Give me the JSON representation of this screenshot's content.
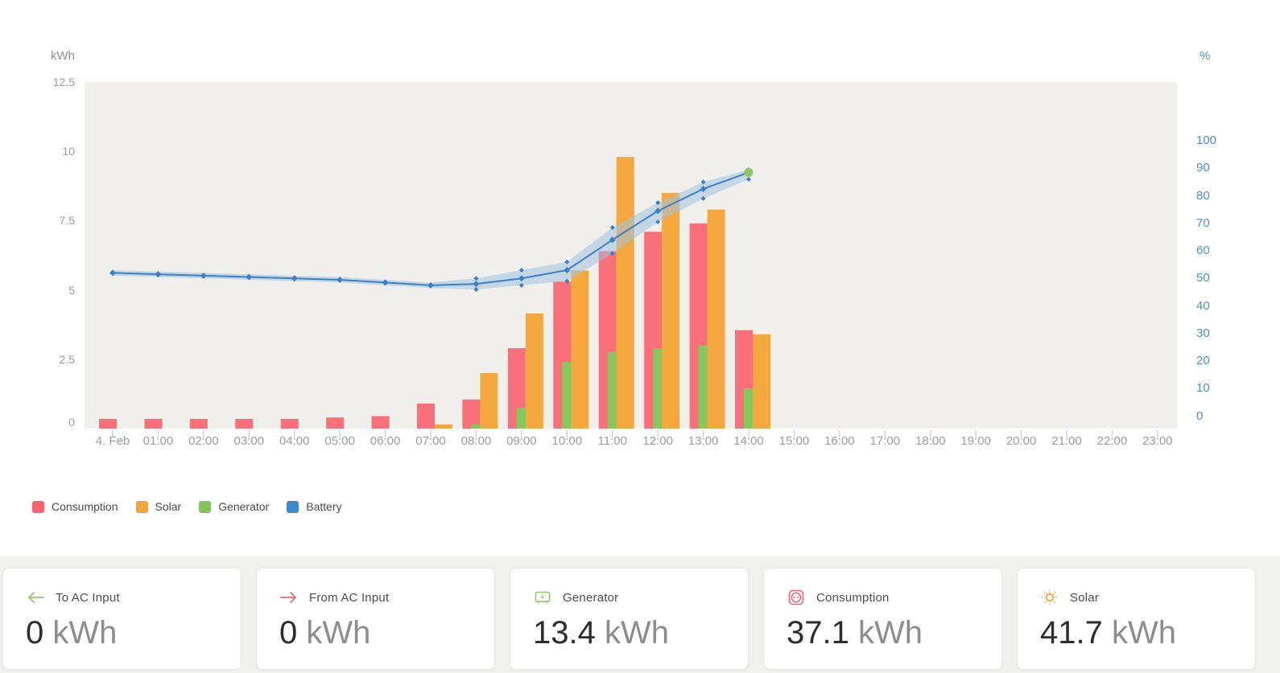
{
  "chart": {
    "left_axis_unit": "kWh",
    "right_axis_unit": "%",
    "left_ticks": [
      "12.5",
      "10",
      "7.5",
      "5",
      "2.5",
      "0"
    ],
    "right_ticks": [
      "100",
      "90",
      "80",
      "70",
      "60",
      "50",
      "40",
      "30",
      "20",
      "10",
      "0"
    ],
    "x_labels": [
      "4. Feb",
      "01:00",
      "02:00",
      "03:00",
      "04:00",
      "05:00",
      "06:00",
      "07:00",
      "08:00",
      "09:00",
      "10:00",
      "11:00",
      "12:00",
      "13:00",
      "14:00",
      "15:00",
      "16:00",
      "17:00",
      "18:00",
      "19:00",
      "20:00",
      "21:00",
      "22:00",
      "23:00"
    ],
    "legend": [
      {
        "label": "Consumption",
        "color": "#f4636f"
      },
      {
        "label": "Solar",
        "color": "#f2a73b"
      },
      {
        "label": "Generator",
        "color": "#82c35b"
      },
      {
        "label": "Battery",
        "color": "#4089cb"
      }
    ]
  },
  "chart_data": {
    "type": "bar+line",
    "title": "",
    "xlabel": "",
    "ylabel_left": "kWh",
    "ylabel_right": "%",
    "ylim_left": [
      0,
      12.5
    ],
    "ylim_right": [
      0,
      100
    ],
    "grid": false,
    "legend_position": "bottom-left",
    "categories": [
      "4. Feb",
      "01:00",
      "02:00",
      "03:00",
      "04:00",
      "05:00",
      "06:00",
      "07:00",
      "08:00",
      "09:00",
      "10:00",
      "11:00",
      "12:00",
      "13:00",
      "14:00",
      "15:00",
      "16:00",
      "17:00",
      "18:00",
      "19:00",
      "20:00",
      "21:00",
      "22:00",
      "23:00"
    ],
    "series": [
      {
        "name": "Consumption",
        "type": "bar",
        "axis": "left",
        "unit": "kWh",
        "color": "#f9707a",
        "values": [
          0.35,
          0.35,
          0.35,
          0.35,
          0.35,
          0.4,
          0.45,
          0.9,
          1.05,
          2.9,
          5.3,
          6.4,
          7.1,
          7.4,
          3.55,
          0,
          0,
          0,
          0,
          0,
          0,
          0,
          0,
          0
        ]
      },
      {
        "name": "Generator",
        "type": "bar",
        "axis": "left",
        "unit": "kWh",
        "color": "#87c85e",
        "values": [
          0,
          0,
          0,
          0,
          0,
          0,
          0,
          0,
          0.15,
          0.75,
          2.4,
          2.75,
          2.9,
          3,
          1.45,
          0,
          0,
          0,
          0,
          0,
          0,
          0,
          0,
          0
        ]
      },
      {
        "name": "Solar",
        "type": "bar",
        "axis": "left",
        "unit": "kWh",
        "color": "#f5a83d",
        "values": [
          0,
          0,
          0,
          0,
          0,
          0,
          0,
          0.15,
          2,
          4.15,
          5.7,
          9.8,
          8.5,
          7.9,
          3.4,
          0,
          0,
          0,
          0,
          0,
          0,
          0,
          0,
          0
        ]
      },
      {
        "name": "Battery",
        "type": "line",
        "axis": "right",
        "unit": "%",
        "color": "#3e7fc4",
        "band_color": "#9fc2e2",
        "values": [
          52,
          51.5,
          51,
          50.5,
          50,
          49.5,
          48.5,
          47.5,
          48,
          50,
          53,
          64,
          74.5,
          82.5,
          88.5
        ],
        "band_min": [
          51,
          50.5,
          50,
          49.5,
          49,
          48.5,
          47.5,
          46.5,
          46,
          47.5,
          49,
          59,
          70.5,
          79,
          86
        ],
        "band_max": [
          53,
          52.5,
          52,
          51.5,
          51,
          50.5,
          49.5,
          48.5,
          50,
          53,
          56,
          68.5,
          77.5,
          85,
          89.5
        ],
        "last_point_color": "#8dc863"
      }
    ]
  },
  "cards": [
    {
      "icon": "arrow-left-icon",
      "icon_color": "#8fc966",
      "label": "To AC Input",
      "value": "0",
      "unit": "kWh"
    },
    {
      "icon": "arrow-right-icon",
      "icon_color": "#f4636f",
      "label": "From AC Input",
      "value": "0",
      "unit": "kWh"
    },
    {
      "icon": "generator-icon",
      "icon_color": "#8fc966",
      "label": "Generator",
      "value": "13.4",
      "unit": "kWh"
    },
    {
      "icon": "socket-icon",
      "icon_color": "#f4636f",
      "label": "Consumption",
      "value": "37.1",
      "unit": "kWh"
    },
    {
      "icon": "sun-icon",
      "icon_color": "#f5a03c",
      "label": "Solar",
      "value": "41.7",
      "unit": "kWh"
    }
  ]
}
